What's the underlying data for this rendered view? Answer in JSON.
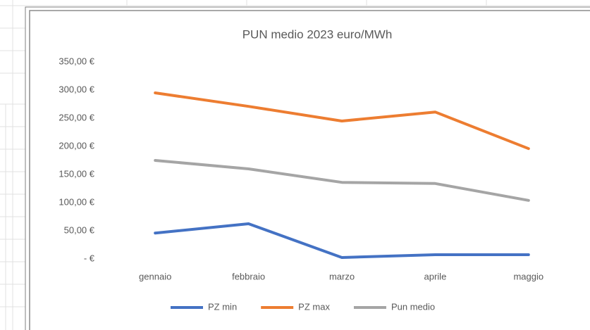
{
  "chart_data": {
    "type": "line",
    "title": "PUN medio 2023 euro/MWh",
    "categories": [
      "gennaio",
      "febbraio",
      "marzo",
      "aprile",
      "maggio"
    ],
    "series": [
      {
        "name": "PZ min",
        "color": "#4472c4",
        "values": [
          46,
          62.5,
          2.5,
          7.5,
          7.5
        ]
      },
      {
        "name": "PZ max",
        "color": "#ed7d31",
        "values": [
          295,
          271,
          245,
          261,
          196
        ]
      },
      {
        "name": "Pun medio",
        "color": "#a5a5a5",
        "values": [
          175,
          160,
          136,
          134,
          104
        ]
      }
    ],
    "ylim": [
      0,
      350
    ],
    "yticks": [
      {
        "value": 0,
        "label": "-  €"
      },
      {
        "value": 50,
        "label": "50,00 €"
      },
      {
        "value": 100,
        "label": "100,00 €"
      },
      {
        "value": 150,
        "label": "150,00 €"
      },
      {
        "value": 200,
        "label": "200,00 €"
      },
      {
        "value": 250,
        "label": "250,00 €"
      },
      {
        "value": 300,
        "label": "300,00 €"
      },
      {
        "value": 350,
        "label": "350,00 €"
      }
    ],
    "grid": false,
    "legend": "bottom"
  }
}
